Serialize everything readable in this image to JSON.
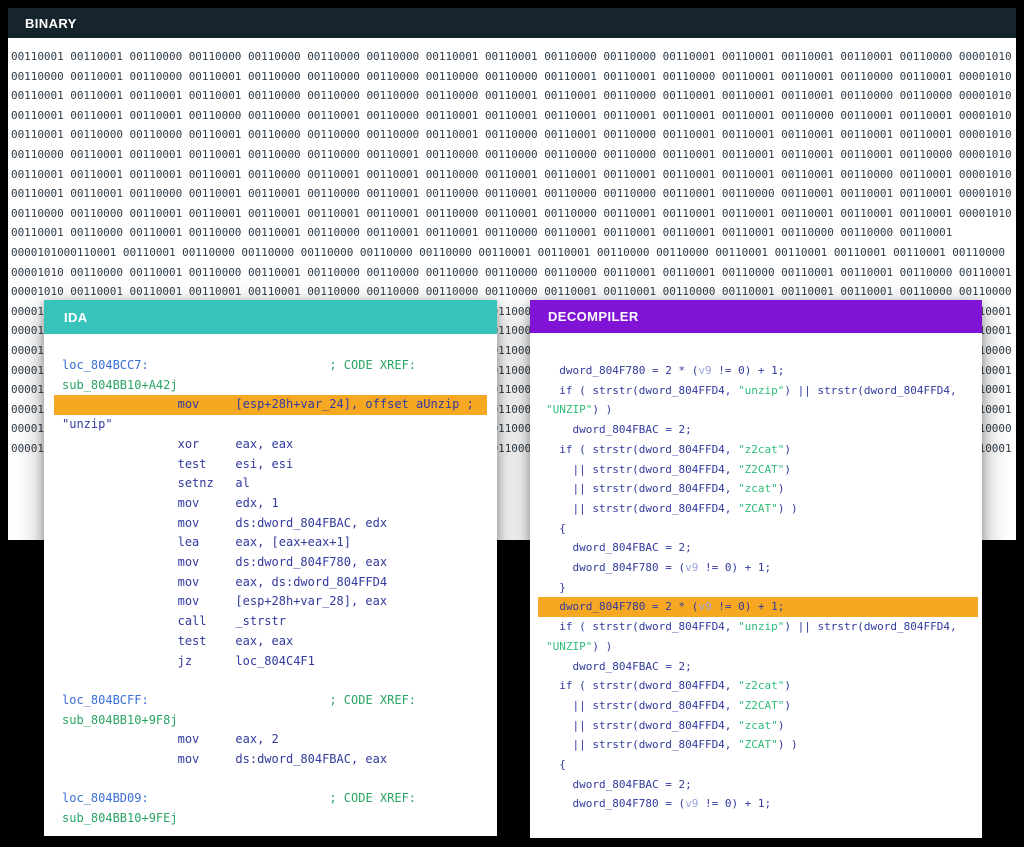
{
  "accents": {
    "page_bg": "#000000",
    "binary_header_bg": "#16242e",
    "ida_header_bg": "#38c3bd",
    "decompiler_header_bg": "#8013d6",
    "highlight_bg": "#f7a823",
    "code_color": "#323a9e",
    "label_color": "#3a6fd6",
    "comment_color": "#2aa465",
    "string_color": "#2fbc78",
    "binary_text_color": "#2e3b46"
  },
  "binary_panel": {
    "title": "BINARY",
    "rows": [
      "00110001 00110001 00110000 00110000 00110000 00110000 00110000 00110001 00110001 00110000 00110000 00110001 00110001 00110001 00110001 00110000 00001010",
      "00110000 00110001 00110000 00110001 00110000 00110000 00110000 00110000 00110000 00110001 00110001 00110000 00110001 00110001 00110000 00110001 00001010",
      "00110001 00110001 00110001 00110001 00110000 00110000 00110000 00110000 00110001 00110001 00110000 00110001 00110001 00110001 00110000 00110000 00001010",
      "00110001 00110001 00110001 00110000 00110000 00110001 00110000 00110001 00110001 00110001 00110001 00110001 00110001 00110000 00110001 00110001 00001010",
      "00110001 00110000 00110000 00110001 00110000 00110000 00110000 00110001 00110000 00110001 00110000 00110001 00110001 00110001 00110001 00110001 00001010",
      "00110000 00110001 00110001 00110001 00110000 00110000 00110001 00110000 00110000 00110000 00110000 00110001 00110001 00110001 00110001 00110000 00001010",
      "00110001 00110001 00110001 00110001 00110000 00110001 00110001 00110000 00110001 00110001 00110001 00110001 00110001 00110001 00110000 00110001 00001010",
      "00110001 00110001 00110000 00110001 00110001 00110000 00110001 00110000 00110001 00110000 00110000 00110001 00110000 00110001 00110001 00110001 00001010",
      "00110000 00110000 00110001 00110001 00110001 00110001 00110001 00110000 00110001 00110000 00110001 00110001 00110001 00110001 00110001 00110001 00001010",
      "00110001 00110000 00110001 00110000 00110001 00110000 00110001 00110001 00110000 00110001 00110001 00110001 00110001 00110000 00110000 00110001",
      "0000101000110001 00110001 00110000 00110000 00110000 00110000 00110000 00110001 00110001 00110000 00110000 00110001 00110001 00110001 00110001 00110000",
      "00001010 00110000 00110001 00110000 00110001 00110000 00110000 00110000 00110000 00110000 00110001 00110001 00110000 00110001 00110001 00110000 00110001",
      "00001010 00110001 00110001 00110001 00110001 00110000 00110000 00110000 00110000 00110001 00110001 00110000 00110001 00110001 00110001 00110000 00110000",
      "00001010 00110001 00110001 00110000 00110000 00110001 00110000 00110001 00110000 00110001 00110001 00110001 00110001 00110000 00110001 00110000 00110001",
      "00001010 00110000 00110001 00110001 00110000 00110001 00110001 00110000 00110001 00110000 00110000 00110001 00110001 00110001 00110000 00110001 00110001",
      "00001010 00110001 00110000 00110001 00110001 00110000 00110000 00110001 00110000 00110001 00110001 00110000 00110001 00110000 00110001 00110001 00110000",
      "00001010 00110000 00110000 00110001 00110001 00110001 00110000 00110000 00110001 00110001 00110000 00110001 00110001 00110001 00110000 00110000 00110001",
      "00001010 00110001 00110001 00110000 00110001 00110000 00110001 00110001 00110000 00110000 00110001 00110000 00110001 00110001 00110001 00110001 00110001",
      "00001010 00110000 00110001 00110001 00110000 00110001 00110000 00110001 00110001 00110001 00110000 00110001 00110000 00110001 00110000 00110001 00110001",
      "00001010 00110001 00110000 00110000 00110001 00110001 00110001 00110000 00110001 00110000 00110001 00110001 00110001 00110000 00110001 00110000 00110000",
      "00001010 00110001 00110001 00110001 00110000 00110000 00110001 00110001 00110000 00110001 00110000 00110000 00110001 00110001 00110000 00110001 00110001"
    ]
  },
  "ida_panel": {
    "title": "IDA",
    "lines": [
      {
        "segments": [
          [
            "lb",
            "loc_804BCC7:"
          ],
          [
            "p",
            "                         "
          ],
          [
            "cm",
            "; CODE XREF:"
          ]
        ]
      },
      {
        "segments": [
          [
            "cm",
            "sub_804BB10+A42j"
          ]
        ]
      },
      {
        "hl": true,
        "segments": [
          [
            "p",
            "                mov     [esp+28h+var_24], offset aUnzip ;"
          ]
        ]
      },
      {
        "segments": [
          [
            "p",
            "\"unzip\""
          ]
        ]
      },
      {
        "segments": [
          [
            "p",
            "                xor     eax, eax"
          ]
        ]
      },
      {
        "segments": [
          [
            "p",
            "                test    esi, esi"
          ]
        ]
      },
      {
        "segments": [
          [
            "p",
            "                setnz   al"
          ]
        ]
      },
      {
        "segments": [
          [
            "p",
            "                mov     edx, 1"
          ]
        ]
      },
      {
        "segments": [
          [
            "p",
            "                mov     ds:dword_804FBAC, edx"
          ]
        ]
      },
      {
        "segments": [
          [
            "p",
            "                lea     eax, [eax+eax+1]"
          ]
        ]
      },
      {
        "segments": [
          [
            "p",
            "                mov     ds:dword_804F780, eax"
          ]
        ]
      },
      {
        "segments": [
          [
            "p",
            "                mov     eax, ds:dword_804FFD4"
          ]
        ]
      },
      {
        "segments": [
          [
            "p",
            "                mov     [esp+28h+var_28], eax"
          ]
        ]
      },
      {
        "segments": [
          [
            "p",
            "                call    _strstr"
          ]
        ]
      },
      {
        "segments": [
          [
            "p",
            "                test    eax, eax"
          ]
        ]
      },
      {
        "segments": [
          [
            "p",
            "                jz      loc_804C4F1"
          ]
        ]
      },
      {
        "segments": []
      },
      {
        "segments": [
          [
            "lb",
            "loc_804BCFF:"
          ],
          [
            "p",
            "                         "
          ],
          [
            "cm",
            "; CODE XREF:"
          ]
        ]
      },
      {
        "segments": [
          [
            "cm",
            "sub_804BB10+9F8j"
          ]
        ]
      },
      {
        "segments": [
          [
            "p",
            "                mov     eax, 2"
          ]
        ]
      },
      {
        "segments": [
          [
            "p",
            "                mov     ds:dword_804FBAC, eax"
          ]
        ]
      },
      {
        "segments": []
      },
      {
        "segments": [
          [
            "lb",
            "loc_804BD09:"
          ],
          [
            "p",
            "                         "
          ],
          [
            "cm",
            "; CODE XREF:"
          ]
        ]
      },
      {
        "segments": [
          [
            "cm",
            "sub_804BB10+9FEj"
          ]
        ]
      }
    ]
  },
  "decompiler_panel": {
    "title": "DECOMPILER",
    "lines": [
      {
        "segments": [
          [
            "p",
            "  dword_804F780 = 2 * ("
          ],
          [
            "v",
            "v9"
          ],
          [
            "p",
            " != 0) + 1;"
          ]
        ]
      },
      {
        "segments": [
          [
            "p",
            "  if ( strstr(dword_804FFD4, "
          ],
          [
            "st",
            "\"unzip\""
          ],
          [
            "p",
            ") || strstr(dword_804FFD4,"
          ]
        ]
      },
      {
        "segments": [
          [
            "st",
            "\"UNZIP\""
          ],
          [
            "p",
            ") )"
          ]
        ]
      },
      {
        "segments": [
          [
            "p",
            "    dword_804FBAC = 2;"
          ]
        ]
      },
      {
        "segments": [
          [
            "p",
            "  if ( strstr(dword_804FFD4, "
          ],
          [
            "st",
            "\"z2cat\""
          ],
          [
            "p",
            ")"
          ]
        ]
      },
      {
        "segments": [
          [
            "p",
            "    || strstr(dword_804FFD4, "
          ],
          [
            "st",
            "\"Z2CAT\""
          ],
          [
            "p",
            ")"
          ]
        ]
      },
      {
        "segments": [
          [
            "p",
            "    || strstr(dword_804FFD4, "
          ],
          [
            "st",
            "\"zcat\""
          ],
          [
            "p",
            ")"
          ]
        ]
      },
      {
        "segments": [
          [
            "p",
            "    || strstr(dword_804FFD4, "
          ],
          [
            "st",
            "\"ZCAT\""
          ],
          [
            "p",
            ") )"
          ]
        ]
      },
      {
        "segments": [
          [
            "p",
            "  {"
          ]
        ]
      },
      {
        "segments": [
          [
            "p",
            "    dword_804FBAC = 2;"
          ]
        ]
      },
      {
        "segments": [
          [
            "p",
            "    dword_804F780 = ("
          ],
          [
            "v",
            "v9"
          ],
          [
            "p",
            " != 0) + 1;"
          ]
        ]
      },
      {
        "segments": [
          [
            "p",
            "  }"
          ]
        ]
      },
      {
        "hl": true,
        "segments": [
          [
            "p",
            "  dword_804F780 = 2 * ("
          ],
          [
            "v",
            "v9"
          ],
          [
            "p",
            " != 0) + 1;"
          ]
        ]
      },
      {
        "segments": [
          [
            "p",
            "  if ( strstr(dword_804FFD4, "
          ],
          [
            "st",
            "\"unzip\""
          ],
          [
            "p",
            ") || strstr(dword_804FFD4,"
          ]
        ]
      },
      {
        "segments": [
          [
            "st",
            "\"UNZIP\""
          ],
          [
            "p",
            ") )"
          ]
        ]
      },
      {
        "segments": [
          [
            "p",
            "    dword_804FBAC = 2;"
          ]
        ]
      },
      {
        "segments": [
          [
            "p",
            "  if ( strstr(dword_804FFD4, "
          ],
          [
            "st",
            "\"z2cat\""
          ],
          [
            "p",
            ")"
          ]
        ]
      },
      {
        "segments": [
          [
            "p",
            "    || strstr(dword_804FFD4, "
          ],
          [
            "st",
            "\"Z2CAT\""
          ],
          [
            "p",
            ")"
          ]
        ]
      },
      {
        "segments": [
          [
            "p",
            "    || strstr(dword_804FFD4, "
          ],
          [
            "st",
            "\"zcat\""
          ],
          [
            "p",
            ")"
          ]
        ]
      },
      {
        "segments": [
          [
            "p",
            "    || strstr(dword_804FFD4, "
          ],
          [
            "st",
            "\"ZCAT\""
          ],
          [
            "p",
            ") )"
          ]
        ]
      },
      {
        "segments": [
          [
            "p",
            "  {"
          ]
        ]
      },
      {
        "segments": [
          [
            "p",
            "    dword_804FBAC = 2;"
          ]
        ]
      },
      {
        "segments": [
          [
            "p",
            "    dword_804F780 = ("
          ],
          [
            "v",
            "v9"
          ],
          [
            "p",
            " != 0) + 1;"
          ]
        ]
      }
    ]
  }
}
